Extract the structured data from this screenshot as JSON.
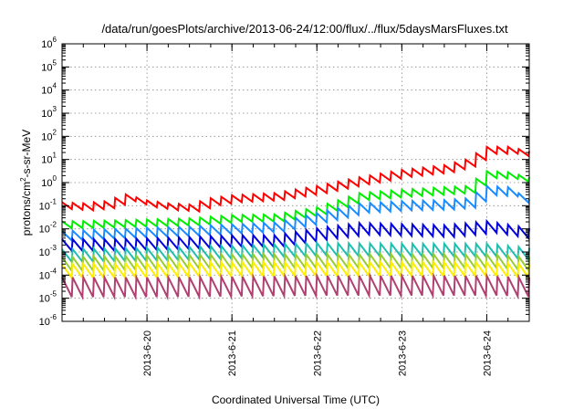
{
  "chart_data": {
    "type": "line",
    "title": "/data/run/goesPlots/archive/2013-06-24/12:00/flux/../flux/5daysMarsFluxes.txt",
    "xlabel": "Coordinated Universal Time (UTC)",
    "ylabel": {
      "base": "protons/cm",
      "sup": "2",
      "rest": "-s-sr-MeV"
    },
    "y_scale": "log",
    "ylim": [
      1e-06,
      1000000.0
    ],
    "y_ticks": [
      {
        "exp": "-6",
        "value": 1e-06
      },
      {
        "exp": "-5",
        "value": 1e-05
      },
      {
        "exp": "-4",
        "value": 0.0001
      },
      {
        "exp": "-3",
        "value": 0.001
      },
      {
        "exp": "-2",
        "value": 0.01
      },
      {
        "exp": "-1",
        "value": 0.1
      },
      {
        "exp": "0",
        "value": 1
      },
      {
        "exp": "1",
        "value": 10
      },
      {
        "exp": "2",
        "value": 100
      },
      {
        "exp": "3",
        "value": 1000
      },
      {
        "exp": "4",
        "value": 10000
      },
      {
        "exp": "5",
        "value": 100000
      },
      {
        "exp": "6",
        "value": 1000000
      }
    ],
    "y_tick_base": "10",
    "x_scale": "time",
    "xlim": [
      "2013-06-19T00:00",
      "2013-06-24T12:00"
    ],
    "x_ticks": [
      {
        "label": "2013-6-20",
        "value": "2013-06-20T00:00"
      },
      {
        "label": "2013-6-21",
        "value": "2013-06-21T00:00"
      },
      {
        "label": "2013-6-22",
        "value": "2013-06-22T00:00"
      },
      {
        "label": "2013-6-23",
        "value": "2013-06-23T00:00"
      },
      {
        "label": "2013-6-24",
        "value": "2013-06-24T00:00"
      }
    ],
    "grid": true,
    "legend": "none",
    "series": [
      {
        "color": "#ff0000",
        "sawtooth_amplitude_decades": 0.3,
        "values": [
          [
            "2013-06-19T00:00",
            0.1
          ],
          [
            "2013-06-19T06:00",
            0.09
          ],
          [
            "2013-06-19T12:00",
            0.11
          ],
          [
            "2013-06-19T18:00",
            0.22
          ],
          [
            "2013-06-20T00:00",
            0.12
          ],
          [
            "2013-06-20T06:00",
            0.09
          ],
          [
            "2013-06-20T12:00",
            0.08
          ],
          [
            "2013-06-20T18:00",
            0.15
          ],
          [
            "2013-06-21T00:00",
            0.2
          ],
          [
            "2013-06-21T12:00",
            0.25
          ],
          [
            "2013-06-22T00:00",
            0.5
          ],
          [
            "2013-06-22T12:00",
            1.2
          ],
          [
            "2013-06-23T00:00",
            2.5
          ],
          [
            "2013-06-23T12:00",
            4
          ],
          [
            "2013-06-23T18:00",
            7
          ],
          [
            "2013-06-24T00:00",
            25
          ],
          [
            "2013-06-24T06:00",
            25
          ],
          [
            "2013-06-24T12:00",
            16
          ]
        ]
      },
      {
        "color": "#00ee00",
        "sawtooth_amplitude_decades": 0.3,
        "values": [
          [
            "2013-06-19T00:00",
            0.015
          ],
          [
            "2013-06-19T12:00",
            0.016
          ],
          [
            "2013-06-20T00:00",
            0.018
          ],
          [
            "2013-06-20T12:00",
            0.02
          ],
          [
            "2013-06-21T00:00",
            0.028
          ],
          [
            "2013-06-21T12:00",
            0.03
          ],
          [
            "2013-06-22T00:00",
            0.06
          ],
          [
            "2013-06-22T12:00",
            0.25
          ],
          [
            "2013-06-23T00:00",
            0.35
          ],
          [
            "2013-06-23T12:00",
            0.45
          ],
          [
            "2013-06-23T18:00",
            0.5
          ],
          [
            "2013-06-24T00:00",
            2.2
          ],
          [
            "2013-06-24T06:00",
            2
          ],
          [
            "2013-06-24T12:00",
            1.2
          ]
        ]
      },
      {
        "color": "#1a8cff",
        "sawtooth_amplitude_decades": 0.4,
        "values": [
          [
            "2013-06-19T00:00",
            0.005
          ],
          [
            "2013-06-19T12:00",
            0.006
          ],
          [
            "2013-06-20T00:00",
            0.007
          ],
          [
            "2013-06-20T12:00",
            0.008
          ],
          [
            "2013-06-21T00:00",
            0.01
          ],
          [
            "2013-06-21T12:00",
            0.012
          ],
          [
            "2013-06-22T00:00",
            0.03
          ],
          [
            "2013-06-22T12:00",
            0.08
          ],
          [
            "2013-06-23T00:00",
            0.1
          ],
          [
            "2013-06-23T12:00",
            0.11
          ],
          [
            "2013-06-23T18:00",
            0.13
          ],
          [
            "2013-06-24T00:00",
            0.45
          ],
          [
            "2013-06-24T06:00",
            0.4
          ],
          [
            "2013-06-24T12:00",
            0.12
          ]
        ]
      },
      {
        "color": "#0000dd",
        "sawtooth_amplitude_decades": 0.5,
        "values": [
          [
            "2013-06-19T00:00",
            0.002
          ],
          [
            "2013-06-19T12:00",
            0.002
          ],
          [
            "2013-06-20T00:00",
            0.0022
          ],
          [
            "2013-06-20T12:00",
            0.0025
          ],
          [
            "2013-06-21T00:00",
            0.003
          ],
          [
            "2013-06-21T12:00",
            0.003
          ],
          [
            "2013-06-22T00:00",
            0.006
          ],
          [
            "2013-06-22T12:00",
            0.01
          ],
          [
            "2013-06-23T00:00",
            0.009
          ],
          [
            "2013-06-23T12:00",
            0.008
          ],
          [
            "2013-06-24T00:00",
            0.012
          ],
          [
            "2013-06-24T12:00",
            0.006
          ]
        ]
      },
      {
        "color": "#1fbfb0",
        "sawtooth_amplitude_decades": 0.55,
        "values": [
          [
            "2013-06-19T00:00",
            0.0007
          ],
          [
            "2013-06-20T00:00",
            0.0008
          ],
          [
            "2013-06-21T00:00",
            0.001
          ],
          [
            "2013-06-22T00:00",
            0.0013
          ],
          [
            "2013-06-23T00:00",
            0.0012
          ],
          [
            "2013-06-24T00:00",
            0.0012
          ],
          [
            "2013-06-24T12:00",
            0.0008
          ]
        ]
      },
      {
        "color": "#99cc33",
        "sawtooth_amplitude_decades": 0.6,
        "values": [
          [
            "2013-06-19T00:00",
            0.0003
          ],
          [
            "2013-06-20T00:00",
            0.00035
          ],
          [
            "2013-06-21T00:00",
            0.0004
          ],
          [
            "2013-06-22T00:00",
            0.0004
          ],
          [
            "2013-06-23T00:00",
            0.0004
          ],
          [
            "2013-06-24T00:00",
            0.0004
          ],
          [
            "2013-06-24T12:00",
            0.0003
          ]
        ]
      },
      {
        "color": "#ffee00",
        "sawtooth_amplitude_decades": 0.6,
        "values": [
          [
            "2013-06-19T00:00",
            0.00015
          ],
          [
            "2013-06-20T00:00",
            0.00016
          ],
          [
            "2013-06-21T00:00",
            0.00018
          ],
          [
            "2013-06-22T00:00",
            0.00018
          ],
          [
            "2013-06-23T00:00",
            0.00018
          ],
          [
            "2013-06-24T00:00",
            0.00018
          ],
          [
            "2013-06-24T12:00",
            0.00015
          ]
        ]
      },
      {
        "color": "#b04070",
        "sawtooth_amplitude_decades": 0.85,
        "values": [
          [
            "2013-06-19T00:00",
            3e-05
          ],
          [
            "2013-06-20T00:00",
            3e-05
          ],
          [
            "2013-06-21T00:00",
            3.2e-05
          ],
          [
            "2013-06-22T00:00",
            3.5e-05
          ],
          [
            "2013-06-23T00:00",
            3.5e-05
          ],
          [
            "2013-06-24T00:00",
            3.5e-05
          ],
          [
            "2013-06-24T12:00",
            3e-05
          ]
        ]
      }
    ]
  }
}
